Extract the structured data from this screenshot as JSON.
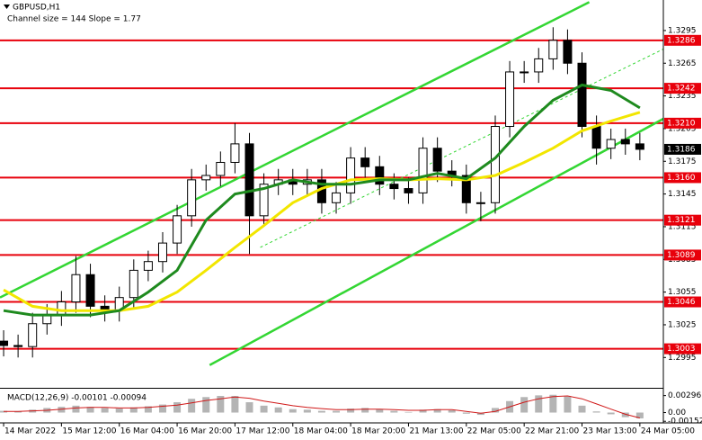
{
  "chart_data": [
    {
      "type": "candlestick",
      "title": "GBPUSD,H1",
      "subtitle": "Channel size = 144 Slope = 1.77",
      "x": [
        0,
        4,
        8,
        12,
        16,
        20,
        24,
        28,
        32,
        36,
        40,
        44,
        48,
        52,
        56,
        60,
        64,
        68,
        72,
        76,
        80,
        84,
        88,
        92,
        96,
        100,
        104,
        108,
        112,
        116,
        120,
        124,
        128,
        132,
        136,
        140,
        144,
        148,
        152,
        156,
        160,
        164,
        168,
        172,
        176
      ],
      "open": [
        1.301,
        1.3006,
        1.3005,
        1.3026,
        1.3034,
        1.3046,
        1.3071,
        1.3042,
        1.3038,
        1.305,
        1.3075,
        1.3083,
        1.31,
        1.3125,
        1.3158,
        1.3162,
        1.3174,
        1.3191,
        1.3125,
        1.3154,
        1.3158,
        1.3154,
        1.3158,
        1.3137,
        1.3146,
        1.3178,
        1.317,
        1.3154,
        1.315,
        1.3146,
        1.3187,
        1.3166,
        1.3162,
        1.3137,
        1.3137,
        1.3207,
        1.3257,
        1.3257,
        1.3269,
        1.3286,
        1.3265,
        1.3207,
        1.3187,
        1.3195,
        1.3191
      ],
      "high": [
        1.302,
        1.3016,
        1.3036,
        1.3044,
        1.3056,
        1.3088,
        1.3081,
        1.3052,
        1.306,
        1.3085,
        1.3093,
        1.311,
        1.3135,
        1.3168,
        1.3172,
        1.3184,
        1.321,
        1.3201,
        1.3164,
        1.3168,
        1.3168,
        1.3168,
        1.3168,
        1.3156,
        1.3188,
        1.3188,
        1.318,
        1.3164,
        1.316,
        1.3197,
        1.3197,
        1.3176,
        1.3172,
        1.3147,
        1.3217,
        1.3267,
        1.3267,
        1.3279,
        1.3298,
        1.3296,
        1.3275,
        1.3217,
        1.3205,
        1.3205,
        1.3201
      ],
      "low": [
        1.2996,
        1.2995,
        1.2995,
        1.3016,
        1.3024,
        1.3036,
        1.3032,
        1.3028,
        1.3028,
        1.304,
        1.3065,
        1.3073,
        1.309,
        1.3115,
        1.3148,
        1.3152,
        1.3164,
        1.309,
        1.3115,
        1.3144,
        1.3144,
        1.3144,
        1.3127,
        1.3127,
        1.3136,
        1.316,
        1.3144,
        1.314,
        1.3136,
        1.3136,
        1.3156,
        1.3152,
        1.3127,
        1.312,
        1.3127,
        1.3197,
        1.3247,
        1.3247,
        1.3259,
        1.3255,
        1.3197,
        1.3172,
        1.3177,
        1.3181,
        1.3176
      ],
      "close": [
        1.3006,
        1.3005,
        1.3026,
        1.3034,
        1.3046,
        1.3071,
        1.3042,
        1.3038,
        1.305,
        1.3075,
        1.3083,
        1.31,
        1.3125,
        1.3158,
        1.3162,
        1.3174,
        1.3191,
        1.3125,
        1.3154,
        1.3158,
        1.3154,
        1.3158,
        1.3137,
        1.3146,
        1.3178,
        1.317,
        1.3154,
        1.315,
        1.3146,
        1.3187,
        1.3166,
        1.3162,
        1.3137,
        1.3137,
        1.3207,
        1.3257,
        1.3257,
        1.3269,
        1.3286,
        1.3265,
        1.3207,
        1.3187,
        1.3195,
        1.3191,
        1.3186
      ],
      "moving_averages": [
        {
          "color": "#f2e600",
          "x": [
            0,
            8,
            16,
            24,
            32,
            40,
            48,
            56,
            64,
            72,
            80,
            88,
            96,
            104,
            112,
            120,
            128,
            136,
            144,
            152,
            160,
            168,
            176
          ],
          "values": [
            1.3057,
            1.3042,
            1.3038,
            1.3038,
            1.3038,
            1.3042,
            1.3055,
            1.3075,
            1.3096,
            1.3116,
            1.3137,
            1.315,
            1.3158,
            1.3159,
            1.3158,
            1.3159,
            1.3158,
            1.3162,
            1.3174,
            1.3187,
            1.3203,
            1.3212,
            1.322
          ]
        },
        {
          "color": "#1e8a1e",
          "x": [
            0,
            8,
            16,
            24,
            32,
            40,
            48,
            56,
            64,
            72,
            80,
            88,
            96,
            104,
            112,
            120,
            128,
            136,
            144,
            152,
            160,
            168,
            176
          ],
          "values": [
            1.3038,
            1.3034,
            1.3034,
            1.3034,
            1.3038,
            1.3055,
            1.3075,
            1.3121,
            1.3145,
            1.315,
            1.3158,
            1.3154,
            1.3154,
            1.3158,
            1.3158,
            1.3164,
            1.3159,
            1.3178,
            1.3207,
            1.3231,
            1.3245,
            1.324,
            1.3224
          ]
        }
      ],
      "channel_lines": [
        {
          "color": "#33d633",
          "dashed": false,
          "x": [
            -1,
            162
          ],
          "values": [
            1.305,
            1.3321
          ]
        },
        {
          "color": "#33d633",
          "dashed": false,
          "x": [
            57,
            182.5
          ],
          "values": [
            1.2988,
            1.3214
          ]
        },
        {
          "color": "#33d633",
          "dashed": true,
          "x": [
            71,
            182.5
          ],
          "values": [
            1.3096,
            1.3278
          ]
        }
      ],
      "levels": {
        "color": "#e8000b",
        "values": [
          1.3286,
          1.3242,
          {
            "value": 1.321,
            "label": "1.3210"
          },
          {
            "value": 1.316,
            "label": "1.3160"
          },
          1.3121,
          1.3089,
          1.3046,
          1.3003
        ]
      },
      "current_price": 1.3186,
      "xlim": [
        -1,
        182.5
      ],
      "ylim": [
        1.2968,
        1.3323
      ],
      "xticks": [
        {
          "value": 0,
          "label": "14 Mar 2022"
        },
        {
          "value": 16,
          "label": "15 Mar 12:00"
        },
        {
          "value": 32,
          "label": "16 Mar 04:00"
        },
        {
          "value": 48,
          "label": "16 Mar 20:00"
        },
        {
          "value": 64,
          "label": "17 Mar 12:00"
        },
        {
          "value": 80,
          "label": "18 Mar 04:00"
        },
        {
          "value": 96,
          "label": "18 Mar 20:00"
        },
        {
          "value": 112,
          "label": "21 Mar 13:00"
        },
        {
          "value": 128,
          "label": "22 Mar 05:00"
        },
        {
          "value": 144,
          "label": "22 Mar 21:00"
        },
        {
          "value": 160,
          "label": "23 Mar 13:00"
        },
        {
          "value": 176,
          "label": "24 Mar 05:00"
        }
      ],
      "yticks": [
        1.3295,
        1.3265,
        1.3235,
        1.3205,
        1.3175,
        1.3145,
        1.3115,
        1.3085,
        1.3055,
        1.3025,
        1.2995
      ],
      "grid": false
    },
    {
      "type": "macd",
      "title": "MACD(12,26,9) -0.00101 -0.00094",
      "histogram": {
        "color": "#b4b4b4",
        "values": [
          0.0003,
          0.0002,
          0.0005,
          0.0008,
          0.001,
          0.0012,
          0.001,
          0.0008,
          0.0007,
          0.0009,
          0.0011,
          0.0014,
          0.0018,
          0.0024,
          0.0027,
          0.0029,
          0.0029,
          0.0018,
          0.0012,
          0.0009,
          0.0006,
          0.0005,
          0.0003,
          0.0003,
          0.0007,
          0.0008,
          0.0006,
          0.0003,
          0.0001,
          0.0005,
          0.0006,
          0.0004,
          -0.0002,
          -0.0004,
          0.0008,
          0.002,
          0.0027,
          0.003,
          0.0031,
          0.0028,
          0.0012,
          0.0002,
          -0.0003,
          -0.0008,
          -0.00101
        ]
      },
      "signal": {
        "color": "#d01818",
        "values": [
          0.0002,
          0.0002,
          0.0003,
          0.0004,
          0.0006,
          0.0008,
          0.0009,
          0.0009,
          0.0008,
          0.0008,
          0.0009,
          0.0011,
          0.0013,
          0.0017,
          0.0021,
          0.0024,
          0.0027,
          0.0025,
          0.002,
          0.0016,
          0.0012,
          0.0009,
          0.0007,
          0.0005,
          0.0005,
          0.0006,
          0.0006,
          0.0005,
          0.0004,
          0.0004,
          0.0005,
          0.0005,
          0.0002,
          -0.0001,
          0.0002,
          0.001,
          0.0018,
          0.0024,
          0.0028,
          0.0029,
          0.0024,
          0.0015,
          0.0006,
          -0.0003,
          -0.00094
        ]
      },
      "ylim": [
        -0.0018,
        0.004
      ],
      "yticks": [
        0.00296,
        {
          "value": 0,
          "label": "0.00"
        },
        -0.00152
      ]
    }
  ]
}
